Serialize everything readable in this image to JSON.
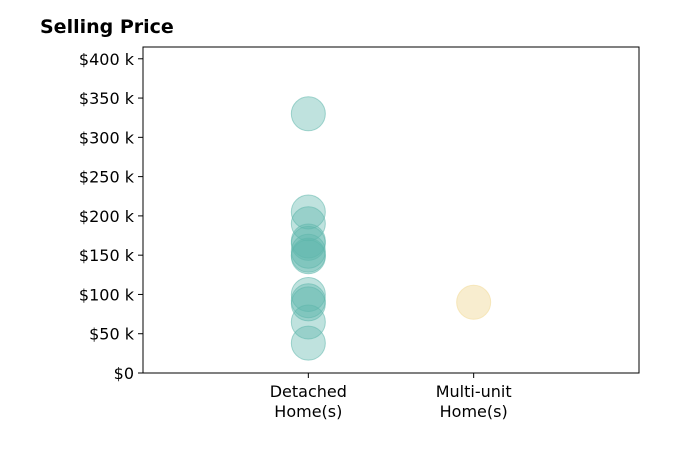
{
  "chart_data": {
    "type": "scatter",
    "title": "Selling Price",
    "xlabel": "",
    "ylabel": "",
    "categories": [
      "Detached\nHome(s)",
      "Multi-unit\nHome(s)"
    ],
    "x_range": [
      -1,
      2
    ],
    "ylim": [
      0,
      415000
    ],
    "y_ticks": [
      0,
      50000,
      100000,
      150000,
      200000,
      250000,
      300000,
      350000,
      400000
    ],
    "y_tick_labels": [
      "$0",
      "$50 k",
      "$100 k",
      "$150 k",
      "$200 k",
      "$250 k",
      "$300 k",
      "$350 k",
      "$400 k"
    ],
    "grid": false,
    "legend": "none",
    "series": [
      {
        "category": "Detached\nHome(s)",
        "color": "#5fb6ac",
        "opacity": 0.4,
        "values": [
          330000,
          205000,
          190000,
          168000,
          165000,
          155000,
          150000,
          148000,
          100000,
          92000,
          88000,
          65000,
          38000
        ]
      },
      {
        "category": "Multi-unit\nHome(s)",
        "color": "#f3dfa7",
        "opacity": 0.55,
        "values": [
          90000
        ]
      }
    ]
  }
}
